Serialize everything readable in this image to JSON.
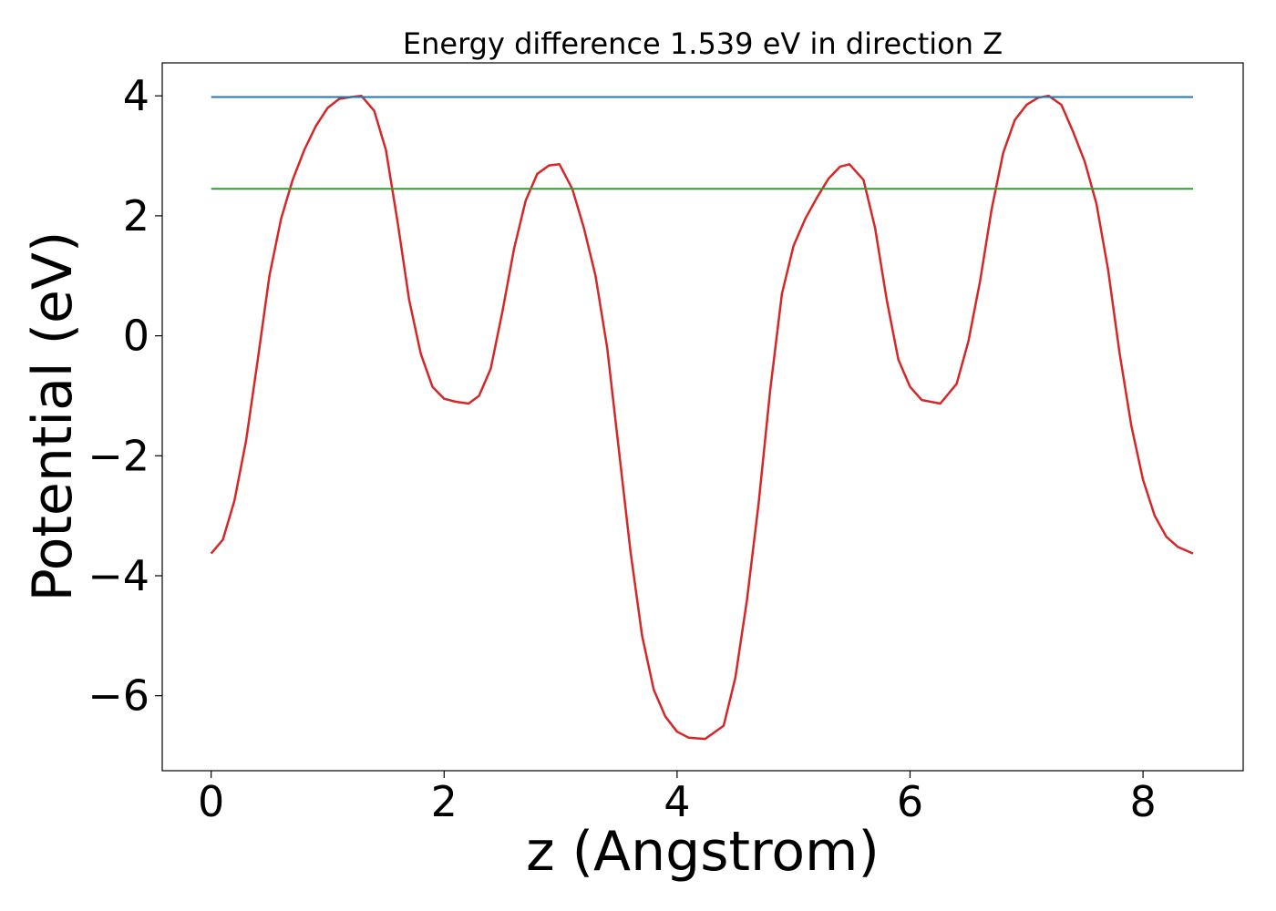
{
  "chart_data": {
    "type": "line",
    "title": "Energy difference 1.539 eV in direction Z",
    "xlabel": "z (Angstrom)",
    "ylabel": "Potential (eV)",
    "xlim": [
      -0.42,
      8.86
    ],
    "ylim": [
      -7.25,
      4.55
    ],
    "x_ticks": [
      0,
      2,
      4,
      6,
      8
    ],
    "y_ticks": [
      -6,
      -4,
      -2,
      0,
      2,
      4
    ],
    "x_tick_labels": [
      "0",
      "2",
      "4",
      "6",
      "8"
    ],
    "y_tick_labels": [
      "−6",
      "−4",
      "−2",
      "0",
      "2",
      "4"
    ],
    "grid": false,
    "series": [
      {
        "role": "potential-curve",
        "color": "#d62728",
        "x": [
          0.0,
          0.1,
          0.2,
          0.3,
          0.4,
          0.5,
          0.6,
          0.7,
          0.8,
          0.9,
          1.0,
          1.1,
          1.2,
          1.29,
          1.4,
          1.5,
          1.6,
          1.7,
          1.8,
          1.9,
          2.0,
          2.1,
          2.21,
          2.3,
          2.4,
          2.5,
          2.6,
          2.7,
          2.8,
          2.9,
          2.99,
          3.1,
          3.2,
          3.3,
          3.4,
          3.5,
          3.6,
          3.7,
          3.8,
          3.9,
          4.0,
          4.1,
          4.24,
          4.4,
          4.5,
          4.6,
          4.7,
          4.8,
          4.9,
          5.0,
          5.1,
          5.2,
          5.3,
          5.4,
          5.48,
          5.6,
          5.7,
          5.8,
          5.9,
          6.0,
          6.1,
          6.26,
          6.4,
          6.5,
          6.6,
          6.7,
          6.8,
          6.9,
          7.0,
          7.1,
          7.19,
          7.3,
          7.4,
          7.5,
          7.6,
          7.7,
          7.8,
          7.9,
          8.0,
          8.1,
          8.2,
          8.3,
          8.43
        ],
        "y": [
          -3.63,
          -3.4,
          -2.75,
          -1.75,
          -0.4,
          1.0,
          1.95,
          2.6,
          3.1,
          3.5,
          3.8,
          3.95,
          3.98,
          4.0,
          3.75,
          3.1,
          1.9,
          0.6,
          -0.3,
          -0.85,
          -1.05,
          -1.1,
          -1.13,
          -1.0,
          -0.55,
          0.4,
          1.45,
          2.25,
          2.7,
          2.84,
          2.86,
          2.45,
          1.8,
          1.0,
          -0.2,
          -1.9,
          -3.6,
          -5.0,
          -5.9,
          -6.35,
          -6.6,
          -6.7,
          -6.72,
          -6.5,
          -5.7,
          -4.4,
          -2.8,
          -0.9,
          0.7,
          1.5,
          1.95,
          2.3,
          2.62,
          2.82,
          2.86,
          2.6,
          1.8,
          0.6,
          -0.4,
          -0.85,
          -1.07,
          -1.13,
          -0.8,
          -0.1,
          0.9,
          2.1,
          3.05,
          3.6,
          3.85,
          3.97,
          4.0,
          3.85,
          3.4,
          2.9,
          2.2,
          1.1,
          -0.3,
          -1.5,
          -2.4,
          -3.0,
          -3.35,
          -3.52,
          -3.63
        ]
      },
      {
        "role": "max-level",
        "color": "#1f77b4",
        "x": [
          0.0,
          8.43
        ],
        "y": [
          3.98,
          3.98
        ]
      },
      {
        "role": "secondary-level",
        "color": "#2ca02c",
        "x": [
          0.0,
          8.43
        ],
        "y": [
          2.45,
          2.45
        ]
      }
    ]
  }
}
